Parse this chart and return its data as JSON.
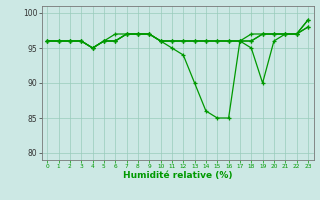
{
  "xlabel": "Humidité relative (%)",
  "bg_color": "#cce8e4",
  "grid_color": "#99ccbb",
  "line_color": "#009900",
  "ylim": [
    79,
    101
  ],
  "xlim": [
    -0.5,
    23.5
  ],
  "yticks": [
    80,
    85,
    90,
    95,
    100
  ],
  "xticks": [
    0,
    1,
    2,
    3,
    4,
    5,
    6,
    7,
    8,
    9,
    10,
    11,
    12,
    13,
    14,
    15,
    16,
    17,
    18,
    19,
    20,
    21,
    22,
    23
  ],
  "lines": [
    [
      96,
      96,
      96,
      96,
      95,
      96,
      96,
      97,
      97,
      97,
      96,
      95,
      94,
      90,
      86,
      85,
      85,
      96,
      95,
      90,
      96,
      97,
      97,
      98
    ],
    [
      96,
      96,
      96,
      96,
      95,
      96,
      96,
      97,
      97,
      97,
      96,
      96,
      96,
      96,
      96,
      96,
      96,
      96,
      96,
      97,
      97,
      97,
      97,
      99
    ],
    [
      96,
      96,
      96,
      96,
      95,
      96,
      97,
      97,
      97,
      97,
      96,
      96,
      96,
      96,
      96,
      96,
      96,
      96,
      97,
      97,
      97,
      97,
      97,
      99
    ],
    [
      96,
      96,
      96,
      96,
      95,
      96,
      96,
      97,
      97,
      97,
      96,
      96,
      96,
      96,
      96,
      96,
      96,
      96,
      96,
      97,
      97,
      97,
      97,
      98
    ]
  ]
}
